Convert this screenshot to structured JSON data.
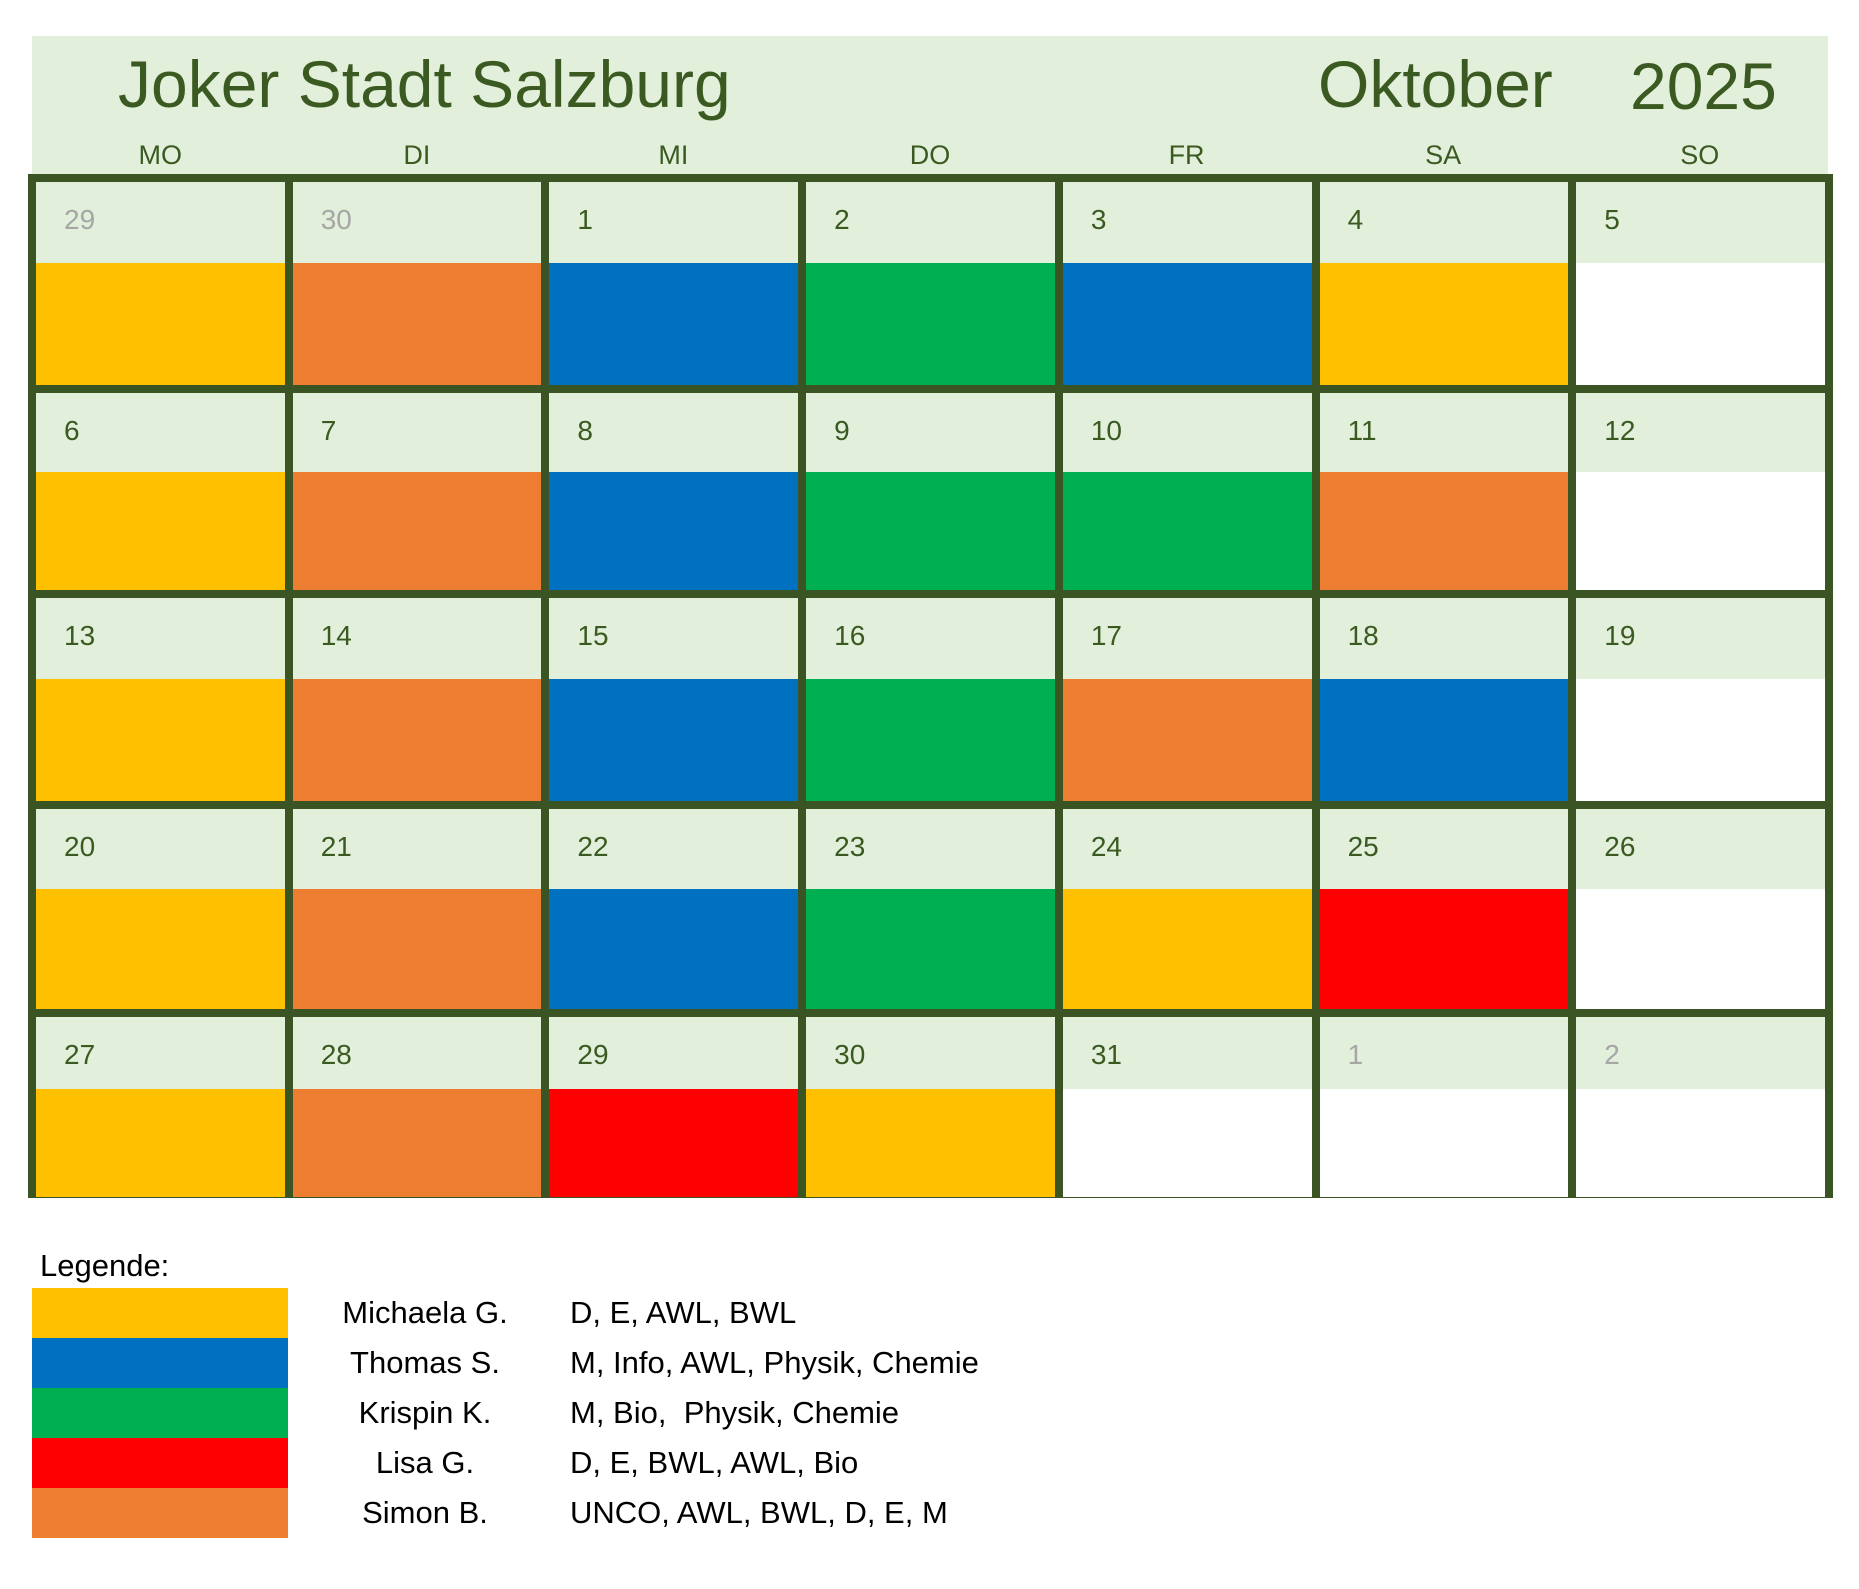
{
  "header": {
    "title": "Joker Stadt Salzburg",
    "month": "Oktober",
    "year": "2025"
  },
  "weekdays": [
    "MO",
    "DI",
    "MI",
    "DO",
    "FR",
    "SA",
    "SO"
  ],
  "colors": {
    "michaela": "#ffc000",
    "thomas": "#0070c0",
    "krispin": "#00b050",
    "lisa": "#ff0000",
    "simon": "#ed7d31",
    "none": "#ffffff"
  },
  "calendar": {
    "weeks": [
      [
        {
          "day": "29",
          "muted": true,
          "color": "#ffc000"
        },
        {
          "day": "30",
          "muted": true,
          "color": "#ed7d31"
        },
        {
          "day": "1",
          "muted": false,
          "color": "#0070c0"
        },
        {
          "day": "2",
          "muted": false,
          "color": "#00b050"
        },
        {
          "day": "3",
          "muted": false,
          "color": "#0070c0"
        },
        {
          "day": "4",
          "muted": false,
          "color": "#ffc000"
        },
        {
          "day": "5",
          "muted": false,
          "color": "#ffffff"
        }
      ],
      [
        {
          "day": "6",
          "muted": false,
          "color": "#ffc000"
        },
        {
          "day": "7",
          "muted": false,
          "color": "#ed7d31"
        },
        {
          "day": "8",
          "muted": false,
          "color": "#0070c0"
        },
        {
          "day": "9",
          "muted": false,
          "color": "#00b050"
        },
        {
          "day": "10",
          "muted": false,
          "color": "#00b050"
        },
        {
          "day": "11",
          "muted": false,
          "color": "#ed7d31"
        },
        {
          "day": "12",
          "muted": false,
          "color": "#ffffff"
        }
      ],
      [
        {
          "day": "13",
          "muted": false,
          "color": "#ffc000"
        },
        {
          "day": "14",
          "muted": false,
          "color": "#ed7d31"
        },
        {
          "day": "15",
          "muted": false,
          "color": "#0070c0"
        },
        {
          "day": "16",
          "muted": false,
          "color": "#00b050"
        },
        {
          "day": "17",
          "muted": false,
          "color": "#ed7d31"
        },
        {
          "day": "18",
          "muted": false,
          "color": "#0070c0"
        },
        {
          "day": "19",
          "muted": false,
          "color": "#ffffff"
        }
      ],
      [
        {
          "day": "20",
          "muted": false,
          "color": "#ffc000"
        },
        {
          "day": "21",
          "muted": false,
          "color": "#ed7d31"
        },
        {
          "day": "22",
          "muted": false,
          "color": "#0070c0"
        },
        {
          "day": "23",
          "muted": false,
          "color": "#00b050"
        },
        {
          "day": "24",
          "muted": false,
          "color": "#ffc000"
        },
        {
          "day": "25",
          "muted": false,
          "color": "#ff0000"
        },
        {
          "day": "26",
          "muted": false,
          "color": "#ffffff"
        }
      ],
      [
        {
          "day": "27",
          "muted": false,
          "color": "#ffc000"
        },
        {
          "day": "28",
          "muted": false,
          "color": "#ed7d31"
        },
        {
          "day": "29",
          "muted": false,
          "color": "#ff0000"
        },
        {
          "day": "30",
          "muted": false,
          "color": "#ffc000"
        },
        {
          "day": "31",
          "muted": false,
          "color": "#ffffff"
        },
        {
          "day": "1",
          "muted": true,
          "color": "#ffffff"
        },
        {
          "day": "2",
          "muted": true,
          "color": "#ffffff"
        }
      ]
    ]
  },
  "legend": {
    "title": "Legende:",
    "entries": [
      {
        "name": "Michaela G.",
        "subjects": "D, E, AWL, BWL",
        "color": "#ffc000"
      },
      {
        "name": "Thomas S.",
        "subjects": "M, Info, AWL, Physik, Chemie",
        "color": "#0070c0"
      },
      {
        "name": "Krispin K.",
        "subjects": "M, Bio,  Physik, Chemie",
        "color": "#00b050"
      },
      {
        "name": "Lisa G.",
        "subjects": "D, E, BWL, AWL, Bio",
        "color": "#ff0000"
      },
      {
        "name": "Simon B.",
        "subjects": "UNCO, AWL, BWL, D, E, M",
        "color": "#ed7d31"
      }
    ]
  }
}
